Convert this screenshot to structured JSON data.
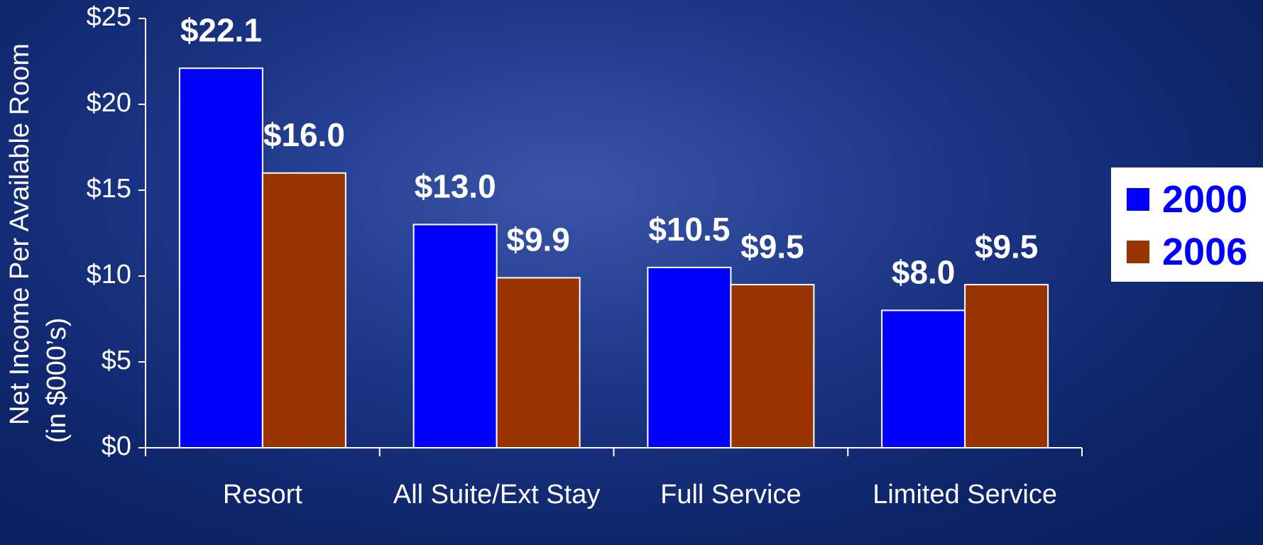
{
  "chart_data": {
    "type": "bar",
    "ylabel": [
      "Net Income Per Available Room",
      "(in $000’s)"
    ],
    "categories": [
      "Resort",
      "All Suite/Ext Stay",
      "Full Service",
      "Limited Service"
    ],
    "series": [
      {
        "name": "2000",
        "color": "#0000ff",
        "values": [
          22.1,
          13.0,
          10.5,
          8.0
        ],
        "value_labels": [
          "$22.1",
          "$13.0",
          "$10.5",
          "$8.0"
        ]
      },
      {
        "name": "2006",
        "color": "#993300",
        "values": [
          16.0,
          9.9,
          9.5,
          9.5
        ],
        "value_labels": [
          "$16.0",
          "$9.9",
          "$9.5",
          "$9.5"
        ]
      }
    ],
    "ylim": [
      0,
      25
    ],
    "yticks": [
      {
        "value": 0,
        "label": "$0"
      },
      {
        "value": 5,
        "label": "$5"
      },
      {
        "value": 10,
        "label": "$10"
      },
      {
        "value": 15,
        "label": "$15"
      },
      {
        "value": 20,
        "label": "$20"
      },
      {
        "value": 25,
        "label": "$25"
      }
    ],
    "legend": "right"
  }
}
